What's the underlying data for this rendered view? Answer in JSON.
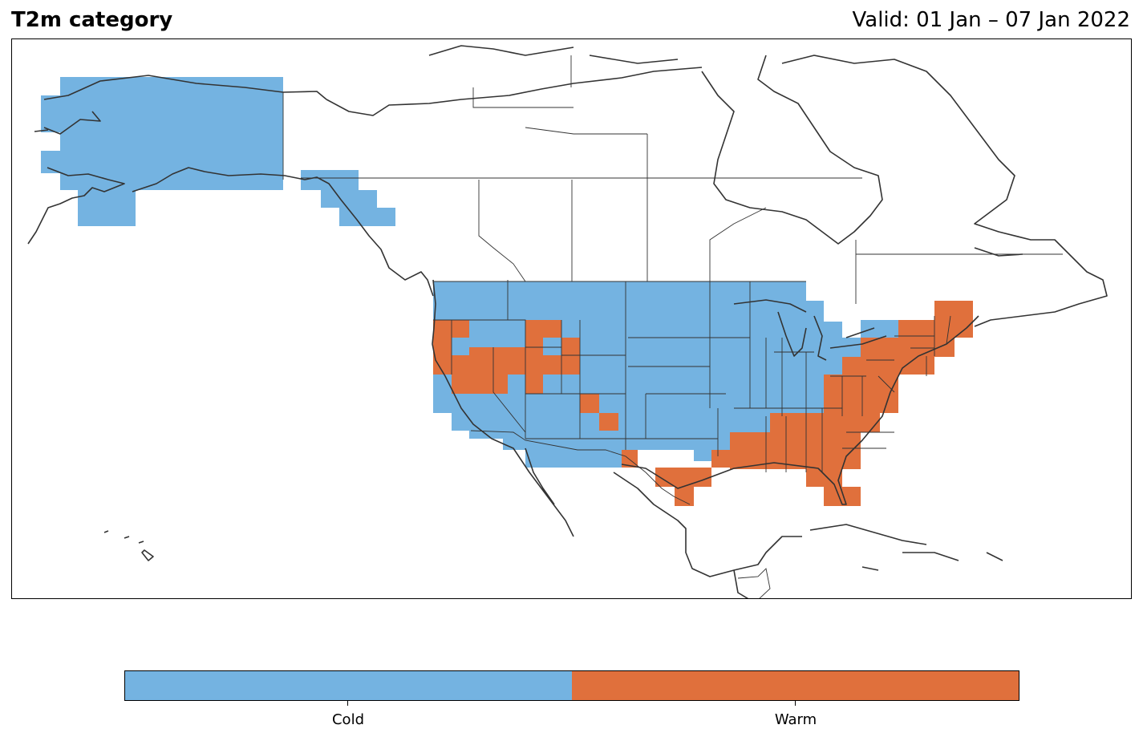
{
  "header": {
    "title": "T2m category",
    "valid": "Valid: 01 Jan – 07 Jan 2022"
  },
  "legend": {
    "categories": [
      {
        "label": "Cold",
        "color": "#74b3e1"
      },
      {
        "label": "Warm",
        "color": "#e0703c"
      }
    ]
  },
  "colors": {
    "cold": "#74b3e1",
    "warm": "#e0703c",
    "coastline": "#333333",
    "border": "#000000"
  }
}
